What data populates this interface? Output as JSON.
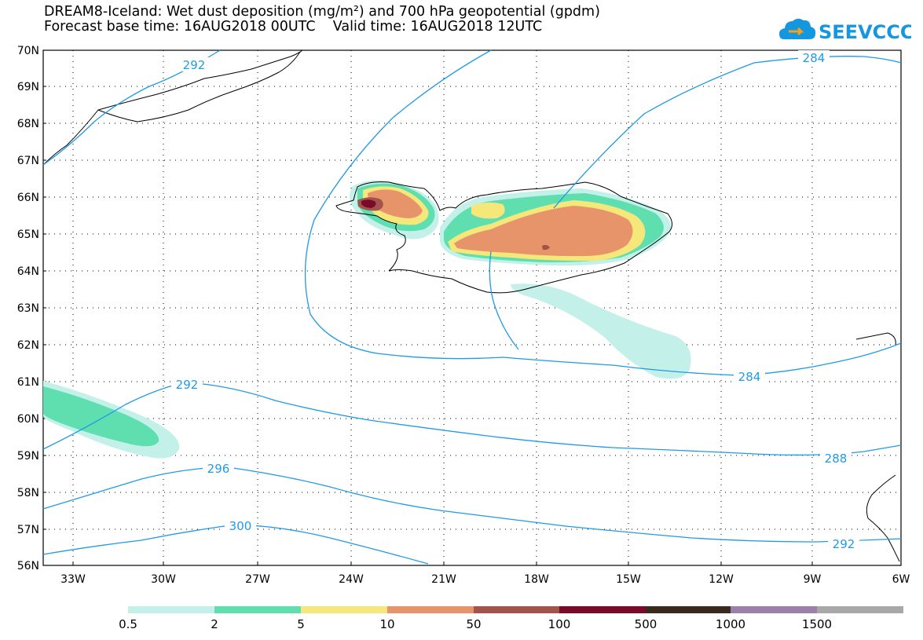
{
  "header": {
    "title_line1": "DREAM8-Iceland: Wet dust deposition (mg/m²) and 700 hPa geopotential (gpdm)",
    "title_line2": "Forecast base time: 16AUG2018 00UTC    Valid time: 16AUG2018 12UTC",
    "logo_text": "SEEVCCC"
  },
  "map": {
    "lat_ticks": [
      "70N",
      "69N",
      "68N",
      "67N",
      "66N",
      "65N",
      "64N",
      "63N",
      "62N",
      "61N",
      "60N",
      "59N",
      "58N",
      "57N",
      "56N"
    ],
    "lon_ticks": [
      "33W",
      "30W",
      "27W",
      "24W",
      "21W",
      "18W",
      "15W",
      "12W",
      "9W",
      "6W"
    ],
    "contour_labels": [
      "292",
      "284",
      "292",
      "284",
      "288",
      "296",
      "292",
      "300"
    ],
    "contour_color": "#1f9ae6"
  },
  "legend": {
    "labels": [
      "0.5",
      "2",
      "5",
      "10",
      "50",
      "100",
      "500",
      "1000",
      "1500"
    ],
    "colors": [
      "#c4f0ea",
      "#5fdfb0",
      "#f5e77a",
      "#e7946b",
      "#a4524c",
      "#7a0a2a",
      "#3a2a1e",
      "#9c7fa8",
      "#a8a8a8"
    ]
  }
}
